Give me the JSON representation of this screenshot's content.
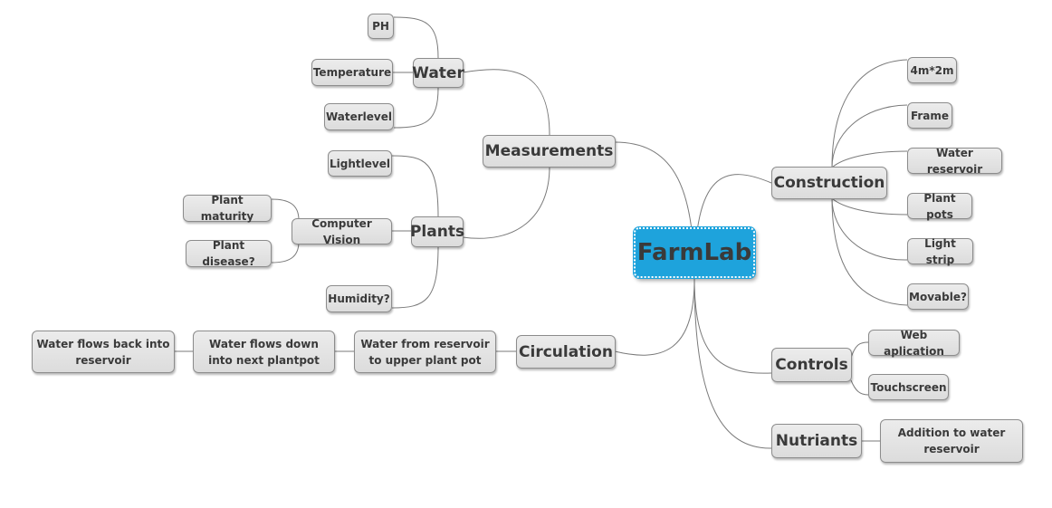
{
  "map": {
    "central": "FarmLab",
    "measurements": {
      "label": "Measurements",
      "water": {
        "label": "Water",
        "ph": "PH",
        "temperature": "Temperature",
        "waterlevel": "Waterlevel"
      },
      "plants": {
        "label": "Plants",
        "lightlevel": "Lightlevel",
        "computer_vision": {
          "label": "Computer Vision",
          "maturity": "Plant maturity",
          "disease": "Plant disease?"
        },
        "humidity": "Humidity?"
      }
    },
    "circulation": {
      "label": "Circulation",
      "step1": "Water from reservoir to upper plant pot",
      "step2": "Water flows down into next plantpot",
      "step3": "Water flows back into reservoir"
    },
    "construction": {
      "label": "Construction",
      "size": "4m*2m",
      "frame": "Frame",
      "reservoir": "Water reservoir",
      "pots": "Plant pots",
      "light": "Light strip",
      "movable": "Movable?"
    },
    "controls": {
      "label": "Controls",
      "web": "Web aplication",
      "touch": "Touchscreen"
    },
    "nutrients": {
      "label": "Nutriants",
      "addition": "Addition to water reservoir"
    }
  }
}
